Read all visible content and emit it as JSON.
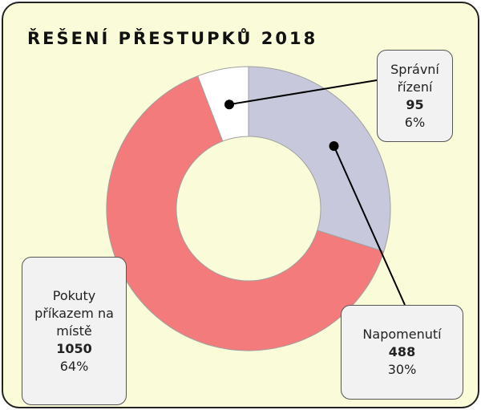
{
  "chart_data": {
    "type": "donut",
    "title": "ŘEŠENÍ PŘESTUPKŮ 2018",
    "categories": [
      "Napomenutí",
      "Pokuty příkazem na místě",
      "Správní řízení"
    ],
    "values": [
      488,
      1050,
      95
    ],
    "percentages": [
      30,
      64,
      6
    ],
    "percentage_labels": [
      "30%",
      "64%",
      "6%"
    ],
    "colors": [
      "#c7c8dc",
      "#f47b7b",
      "#ffffff"
    ]
  }
}
